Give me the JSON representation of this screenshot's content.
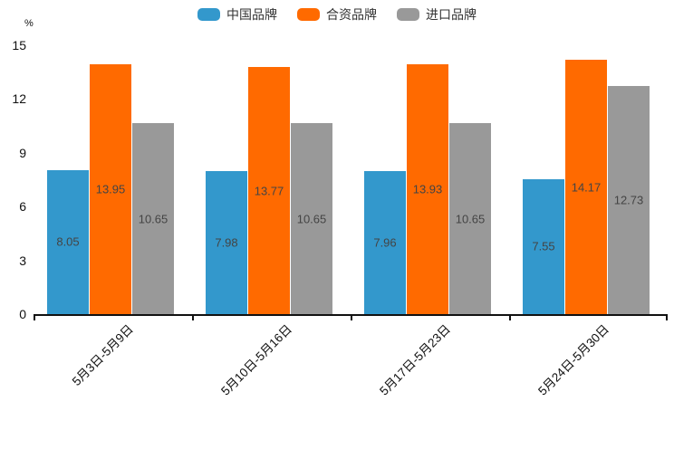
{
  "chart_data": {
    "type": "bar",
    "title": "",
    "unit": "%",
    "categories": [
      "5月3日-5月9日",
      "5月10日-5月16日",
      "5月17日-5月23日",
      "5月24日-5月30日"
    ],
    "series": [
      {
        "name": "中国品牌",
        "color": "#3398CC",
        "values": [
          8.05,
          7.98,
          7.96,
          7.55
        ]
      },
      {
        "name": "合资品牌",
        "color": "#FF6A00",
        "values": [
          13.95,
          13.77,
          13.93,
          14.17
        ]
      },
      {
        "name": "进口品牌",
        "color": "#999999",
        "values": [
          10.65,
          10.65,
          10.65,
          12.73
        ]
      }
    ],
    "ylim": [
      0,
      15
    ],
    "yticks": [
      0,
      3,
      6,
      9,
      12,
      15
    ],
    "grid": false,
    "legend_position": "top-center",
    "legend_marker_shape": "round-rect",
    "bar_label_position": "inside-center",
    "bar_label_color": "#444444",
    "axis_color": "#111111",
    "background_color": "#ffffff"
  }
}
